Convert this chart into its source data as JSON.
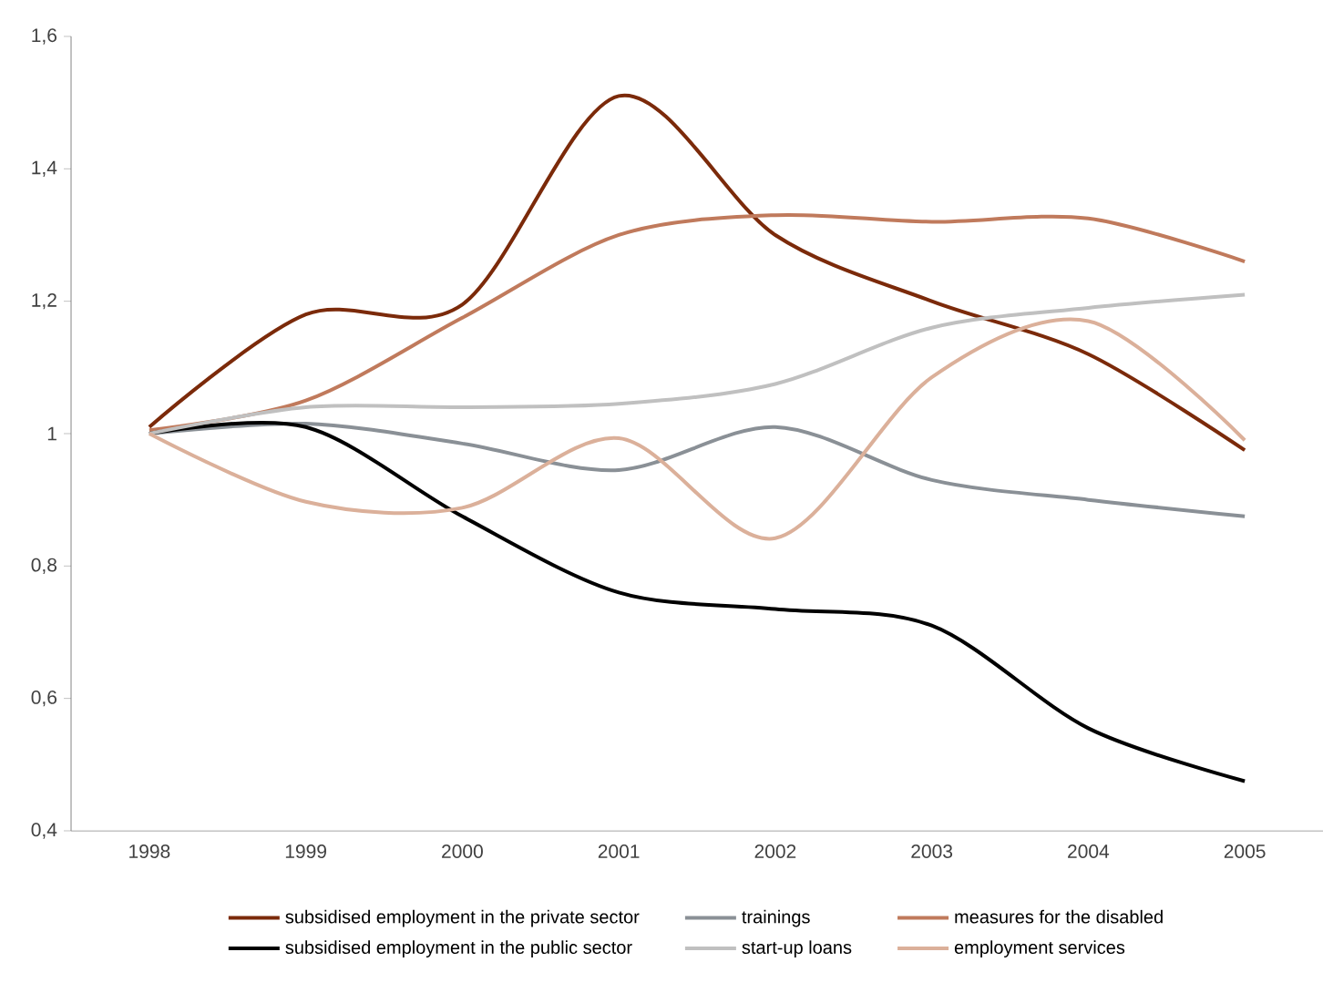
{
  "chart_data": {
    "type": "line",
    "categories": [
      "1998",
      "1999",
      "2000",
      "2001",
      "2002",
      "2003",
      "2004",
      "2005"
    ],
    "ylim": [
      0.4,
      1.6
    ],
    "yticks": [
      {
        "value": 0.4,
        "label": "0,4"
      },
      {
        "value": 0.6,
        "label": "0,6"
      },
      {
        "value": 0.8,
        "label": "0,8"
      },
      1,
      {
        "value": 1.2,
        "label": "1,2"
      },
      {
        "value": 1.4,
        "label": "1,4"
      },
      {
        "value": 1.6,
        "label": "1,6"
      }
    ],
    "grid": false,
    "legend": "bottom",
    "marker": "none",
    "line_style": "solid",
    "series": [
      {
        "name": "subsidised employment in the private sector",
        "color": "#7b2a0a",
        "values": [
          1.01,
          1.18,
          1.195,
          1.51,
          1.3,
          1.2,
          1.12,
          0.975
        ]
      },
      {
        "name": "trainings",
        "color": "#8a9096",
        "values": [
          1.0,
          1.015,
          0.985,
          0.945,
          1.01,
          0.93,
          0.9,
          0.875
        ]
      },
      {
        "name": "measures for the disabled",
        "color": "#c07a5c",
        "values": [
          1.005,
          1.05,
          1.175,
          1.3,
          1.33,
          1.32,
          1.325,
          1.26
        ]
      },
      {
        "name": "subsidised employment in the public sector",
        "color": "#000000",
        "values": [
          1.0,
          1.01,
          0.875,
          0.76,
          0.735,
          0.71,
          0.555,
          0.475
        ]
      },
      {
        "name": "start-up loans",
        "color": "#c0c0c0",
        "values": [
          1.0,
          1.04,
          1.04,
          1.045,
          1.075,
          1.16,
          1.19,
          1.21
        ]
      },
      {
        "name": "employment services",
        "color": "#dbb09a",
        "values": [
          1.0,
          0.897,
          0.888,
          0.993,
          0.842,
          1.085,
          1.17,
          0.99
        ]
      }
    ]
  }
}
